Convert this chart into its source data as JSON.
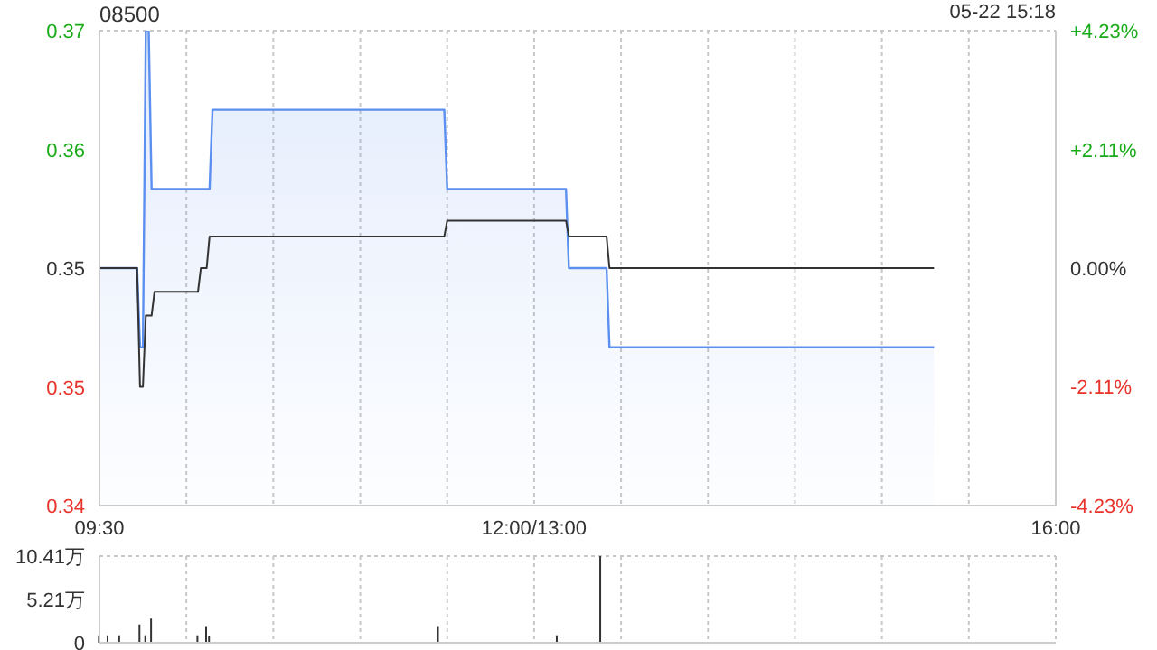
{
  "chart_data": [
    {
      "type": "area",
      "title": "08500",
      "annotations": [
        "05-22 15:18"
      ],
      "categories": [
        "09:30",
        null,
        null,
        null,
        null,
        null,
        null,
        null,
        null,
        null,
        null,
        null,
        null,
        null,
        null,
        null,
        null,
        null,
        null,
        null,
        null,
        null,
        null,
        null,
        null,
        null,
        null,
        null,
        null,
        null,
        null,
        null,
        null,
        null,
        null,
        null,
        null,
        null,
        null,
        null,
        null,
        null,
        null,
        null,
        null,
        null,
        null,
        null,
        null,
        null,
        null,
        null,
        null,
        null,
        null,
        null,
        null,
        null,
        null,
        null,
        null,
        null,
        null,
        null,
        null,
        null,
        null,
        null,
        null,
        null,
        null,
        null,
        null,
        null,
        null,
        null,
        null,
        null,
        null,
        null,
        null,
        null,
        null,
        null,
        null,
        null,
        null,
        null,
        null,
        null,
        null,
        null,
        null,
        null,
        null,
        null,
        null,
        null,
        null,
        null,
        null,
        null,
        null,
        null,
        null,
        null,
        null,
        null,
        null,
        null,
        null,
        null,
        null,
        null,
        null,
        null,
        null,
        null,
        null,
        null,
        null,
        null,
        null,
        null,
        null,
        null,
        null,
        null,
        null,
        null,
        null,
        null,
        null,
        null,
        null,
        null,
        null,
        null,
        null,
        null,
        null,
        null,
        null,
        null,
        null,
        null,
        null,
        null,
        null,
        null,
        "12:00/13:00",
        null,
        null,
        null,
        null,
        null,
        null,
        null,
        null,
        null,
        null,
        null,
        null,
        null,
        null,
        null,
        null,
        null,
        null,
        null,
        null,
        null,
        null,
        null,
        null,
        null,
        null,
        null,
        null,
        null,
        null,
        null,
        null,
        null,
        null,
        null,
        null,
        null,
        null,
        null,
        null,
        null,
        null,
        null,
        null,
        null,
        null,
        null,
        null,
        null,
        null,
        null,
        null,
        null,
        null,
        null,
        null,
        null,
        null,
        null,
        null,
        null,
        null,
        null,
        null,
        null,
        null,
        null,
        null,
        null,
        null,
        null,
        null,
        null,
        null,
        null,
        null,
        null,
        null,
        null,
        null,
        null,
        null,
        null,
        null,
        null,
        null,
        null,
        null,
        null,
        null,
        null,
        null,
        null,
        null,
        null,
        null,
        null,
        null,
        null,
        null,
        null,
        null,
        null,
        null,
        null,
        null,
        null,
        null,
        null,
        null,
        null,
        null,
        null,
        null,
        null,
        null,
        null,
        null,
        null,
        null,
        null,
        null,
        null,
        null,
        null,
        null,
        null,
        null,
        null,
        null,
        null,
        null,
        null,
        null,
        null,
        null,
        null,
        null,
        null,
        null,
        null,
        null,
        null,
        null,
        null,
        null,
        null,
        null,
        null,
        null,
        null,
        null,
        null,
        null,
        null,
        null,
        null,
        null,
        null,
        null,
        null,
        null,
        null,
        null,
        null,
        null,
        null,
        null,
        null,
        null,
        null,
        null,
        null,
        null,
        null,
        null,
        null,
        null,
        null,
        "16:00"
      ],
      "ylim": [
        0.34,
        0.37
      ],
      "yticks": [
        {
          "value": 0.34,
          "label": "0.34"
        },
        {
          "value": 0.3475,
          "label": "0.35"
        },
        {
          "value": 0.355,
          "label": "0.35"
        },
        {
          "value": 0.3625,
          "label": "0.36"
        },
        {
          "value": 0.37,
          "label": "0.37"
        }
      ],
      "y2lim": [
        -4.23,
        4.23
      ],
      "y2ticks": [
        {
          "value": -4.23,
          "label": "-4.23%"
        },
        {
          "value": -2.11,
          "label": "-2.11%"
        },
        {
          "value": 0,
          "label": "0.00%"
        },
        {
          "value": 2.11,
          "label": "+2.11%"
        },
        {
          "value": 4.23,
          "label": "+4.23%"
        }
      ],
      "grid": true,
      "marker": "none",
      "series": [
        {
          "color": "#5b8ff0",
          "values": [
            0.355,
            0.355,
            0.355,
            0.355,
            0.355,
            0.355,
            0.355,
            0.355,
            0.355,
            0.355,
            0.355,
            0.355,
            0.355,
            0.355,
            0.35,
            0.35,
            0.37,
            0.37,
            0.36,
            0.36,
            0.36,
            0.36,
            0.36,
            0.36,
            0.36,
            0.36,
            0.36,
            0.36,
            0.36,
            0.36,
            0.36,
            0.36,
            0.36,
            0.36,
            0.36,
            0.36,
            0.36,
            0.36,
            0.36,
            0.365,
            0.365,
            0.365,
            0.365,
            0.365,
            0.365,
            0.365,
            0.365,
            0.365,
            0.365,
            0.365,
            0.365,
            0.365,
            0.365,
            0.365,
            0.365,
            0.365,
            0.365,
            0.365,
            0.365,
            0.365,
            0.365,
            0.365,
            0.365,
            0.365,
            0.365,
            0.365,
            0.365,
            0.365,
            0.365,
            0.365,
            0.365,
            0.365,
            0.365,
            0.365,
            0.365,
            0.365,
            0.365,
            0.365,
            0.365,
            0.365,
            0.365,
            0.365,
            0.365,
            0.365,
            0.365,
            0.365,
            0.365,
            0.365,
            0.365,
            0.365,
            0.365,
            0.365,
            0.365,
            0.365,
            0.365,
            0.365,
            0.365,
            0.365,
            0.365,
            0.365,
            0.365,
            0.365,
            0.365,
            0.365,
            0.365,
            0.365,
            0.365,
            0.365,
            0.365,
            0.365,
            0.365,
            0.365,
            0.365,
            0.365,
            0.365,
            0.365,
            0.365,
            0.365,
            0.365,
            0.365,
            0.36,
            0.36,
            0.36,
            0.36,
            0.36,
            0.36,
            0.36,
            0.36,
            0.36,
            0.36,
            0.36,
            0.36,
            0.36,
            0.36,
            0.36,
            0.36,
            0.36,
            0.36,
            0.36,
            0.36,
            0.36,
            0.36,
            0.36,
            0.36,
            0.36,
            0.36,
            0.36,
            0.36,
            0.36,
            0.36,
            0.36,
            0.36,
            0.36,
            0.36,
            0.36,
            0.36,
            0.36,
            0.36,
            0.36,
            0.36,
            0.36,
            0.36,
            0.355,
            0.355,
            0.355,
            0.355,
            0.355,
            0.355,
            0.355,
            0.355,
            0.355,
            0.355,
            0.355,
            0.355,
            0.355,
            0.355,
            0.35,
            0.35,
            0.35,
            0.35,
            0.35,
            0.35,
            0.35,
            0.35,
            0.35,
            0.35,
            0.35,
            0.35,
            0.35,
            0.35,
            0.35,
            0.35,
            0.35,
            0.35,
            0.35,
            0.35,
            0.35,
            0.35,
            0.35,
            0.35,
            0.35,
            0.35,
            0.35,
            0.35,
            0.35,
            0.35,
            0.35,
            0.35,
            0.35,
            0.35,
            0.35,
            0.35,
            0.35,
            0.35,
            0.35,
            0.35,
            0.35,
            0.35,
            0.35,
            0.35,
            0.35,
            0.35,
            0.35,
            0.35,
            0.35,
            0.35,
            0.35,
            0.35,
            0.35,
            0.35,
            0.35,
            0.35,
            0.35,
            0.35,
            0.35,
            0.35,
            0.35,
            0.35,
            0.35,
            0.35,
            0.35,
            0.35,
            0.35,
            0.35,
            0.35,
            0.35,
            0.35,
            0.35,
            0.35,
            0.35,
            0.35,
            0.35,
            0.35,
            0.35,
            0.35,
            0.35,
            0.35,
            0.35,
            0.35,
            0.35,
            0.35,
            0.35,
            0.35,
            0.35,
            0.35,
            0.35,
            0.35,
            0.35,
            0.35,
            0.35,
            0.35,
            0.35,
            0.35,
            0.35,
            0.35,
            0.35,
            0.35,
            0.35,
            0.35,
            0.35,
            0.35,
            0.35,
            0.35,
            0.35,
            0.35,
            0.35,
            0.35,
            0.35,
            0.35,
            null,
            null,
            null,
            null,
            null,
            null,
            null,
            null,
            null,
            null,
            null,
            null,
            null,
            null,
            null,
            null,
            null,
            null,
            null,
            null,
            null,
            null,
            null,
            null,
            null,
            null,
            null,
            null,
            null,
            null,
            null,
            null,
            null,
            null,
            null,
            null,
            null,
            null,
            null,
            null,
            null,
            null
          ]
        },
        {
          "type": "line",
          "color": "#333333",
          "values": [
            0.355,
            0.355,
            0.355,
            0.355,
            0.355,
            0.355,
            0.355,
            0.355,
            0.355,
            0.355,
            0.355,
            0.355,
            0.355,
            0.355,
            0.3475,
            0.3475,
            0.352,
            0.352,
            0.352,
            0.3535,
            0.3535,
            0.3535,
            0.3535,
            0.3535,
            0.3535,
            0.3535,
            0.3535,
            0.3535,
            0.3535,
            0.3535,
            0.3535,
            0.3535,
            0.3535,
            0.3535,
            0.3535,
            0.355,
            0.355,
            0.355,
            0.357,
            0.357,
            0.357,
            0.357,
            0.357,
            0.357,
            0.357,
            0.357,
            0.357,
            0.357,
            0.357,
            0.357,
            0.357,
            0.357,
            0.357,
            0.357,
            0.357,
            0.357,
            0.357,
            0.357,
            0.357,
            0.357,
            0.357,
            0.357,
            0.357,
            0.357,
            0.357,
            0.357,
            0.357,
            0.357,
            0.357,
            0.357,
            0.357,
            0.357,
            0.357,
            0.357,
            0.357,
            0.357,
            0.357,
            0.357,
            0.357,
            0.357,
            0.357,
            0.357,
            0.357,
            0.357,
            0.357,
            0.357,
            0.357,
            0.357,
            0.357,
            0.357,
            0.357,
            0.357,
            0.357,
            0.357,
            0.357,
            0.357,
            0.357,
            0.357,
            0.357,
            0.357,
            0.357,
            0.357,
            0.357,
            0.357,
            0.357,
            0.357,
            0.357,
            0.357,
            0.357,
            0.357,
            0.357,
            0.357,
            0.357,
            0.357,
            0.357,
            0.357,
            0.357,
            0.357,
            0.357,
            0.357,
            0.358,
            0.358,
            0.358,
            0.358,
            0.358,
            0.358,
            0.358,
            0.358,
            0.358,
            0.358,
            0.358,
            0.358,
            0.358,
            0.358,
            0.358,
            0.358,
            0.358,
            0.358,
            0.358,
            0.358,
            0.358,
            0.358,
            0.358,
            0.358,
            0.358,
            0.358,
            0.358,
            0.358,
            0.358,
            0.358,
            0.358,
            0.358,
            0.358,
            0.358,
            0.358,
            0.358,
            0.358,
            0.358,
            0.358,
            0.358,
            0.358,
            0.358,
            0.357,
            0.357,
            0.357,
            0.357,
            0.357,
            0.357,
            0.357,
            0.357,
            0.357,
            0.357,
            0.357,
            0.357,
            0.357,
            0.357,
            0.355,
            0.355,
            0.355,
            0.355,
            0.355,
            0.355,
            0.355,
            0.355,
            0.355,
            0.355,
            0.355,
            0.355,
            0.355,
            0.355,
            0.355,
            0.355,
            0.355,
            0.355,
            0.355,
            0.355,
            0.355,
            0.355,
            0.355,
            0.355,
            0.355,
            0.355,
            0.355,
            0.355,
            0.355,
            0.355,
            0.355,
            0.355,
            0.355,
            0.355,
            0.355,
            0.355,
            0.355,
            0.355,
            0.355,
            0.355,
            0.355,
            0.355,
            0.355,
            0.355,
            0.355,
            0.355,
            0.355,
            0.355,
            0.355,
            0.355,
            0.355,
            0.355,
            0.355,
            0.355,
            0.355,
            0.355,
            0.355,
            0.355,
            0.355,
            0.355,
            0.355,
            0.355,
            0.355,
            0.355,
            0.355,
            0.355,
            0.355,
            0.355,
            0.355,
            0.355,
            0.355,
            0.355,
            0.355,
            0.355,
            0.355,
            0.355,
            0.355,
            0.355,
            0.355,
            0.355,
            0.355,
            0.355,
            0.355,
            0.355,
            0.355,
            0.355,
            0.355,
            0.355,
            0.355,
            0.355,
            0.355,
            0.355,
            0.355,
            0.355,
            0.355,
            0.355,
            0.355,
            0.355,
            0.355,
            0.355,
            0.355,
            0.355,
            0.355,
            0.355,
            0.355,
            0.355,
            0.355,
            0.355,
            0.355,
            0.355,
            0.355,
            0.355,
            0.355,
            null,
            null,
            null,
            null,
            null,
            null,
            null,
            null,
            null,
            null,
            null,
            null,
            null,
            null,
            null,
            null,
            null,
            null,
            null,
            null,
            null,
            null,
            null,
            null,
            null,
            null,
            null,
            null,
            null,
            null,
            null,
            null,
            null,
            null,
            null,
            null,
            null,
            null,
            null,
            null,
            null,
            null
          ]
        }
      ]
    },
    {
      "type": "bar",
      "tick_labels": "y",
      "categories": [
        null,
        null,
        null,
        null,
        null,
        null,
        null,
        null,
        null,
        null,
        null,
        null,
        null,
        null,
        null,
        null,
        null,
        null,
        null,
        null,
        null,
        null,
        null,
        null,
        null,
        null,
        null,
        null,
        null,
        null,
        null,
        null,
        null,
        null,
        null,
        null,
        null,
        null,
        null,
        null,
        null,
        null,
        null,
        null,
        null,
        null,
        null,
        null,
        null,
        null,
        null,
        null,
        null,
        null,
        null,
        null,
        null,
        null,
        null,
        null,
        null,
        null,
        null,
        null,
        null,
        null,
        null,
        null,
        null,
        null,
        null,
        null,
        null,
        null,
        null,
        null,
        null,
        null,
        null,
        null,
        null,
        null,
        null,
        null,
        null,
        null,
        null,
        null,
        null,
        null,
        null,
        null,
        null,
        null,
        null,
        null,
        null,
        null,
        null,
        null,
        null,
        null,
        null,
        null,
        null,
        null,
        null,
        null,
        null,
        null,
        null,
        null,
        null,
        null,
        null,
        null,
        null,
        null,
        null,
        null,
        null,
        null,
        null,
        null,
        null,
        null,
        null,
        null,
        null,
        null,
        null,
        null,
        null,
        null,
        null,
        null,
        null,
        null,
        null,
        null,
        null,
        null,
        null,
        null,
        null,
        null,
        null,
        null,
        null,
        null,
        null,
        null,
        null,
        null,
        null,
        null,
        null,
        null,
        null,
        null,
        null,
        null,
        null,
        null,
        null,
        null,
        null,
        null,
        null,
        null,
        null,
        null,
        null,
        null,
        null,
        null,
        null,
        null,
        null,
        null,
        null,
        null,
        null,
        null,
        null,
        null,
        null,
        null,
        null,
        null,
        null,
        null,
        null,
        null,
        null,
        null,
        null,
        null,
        null,
        null,
        null,
        null,
        null,
        null,
        null,
        null,
        null,
        null,
        null,
        null,
        null,
        null,
        null,
        null,
        null,
        null,
        null,
        null,
        null,
        null,
        null,
        null,
        null,
        null,
        null,
        null,
        null,
        null,
        null,
        null,
        null,
        null,
        null,
        null,
        null,
        null,
        null,
        null,
        null,
        null,
        null,
        null,
        null,
        null,
        null,
        null,
        null,
        null,
        null,
        null,
        null,
        null,
        null,
        null,
        null,
        null,
        null,
        null,
        null,
        null,
        null,
        null,
        null,
        null,
        null,
        null,
        null,
        null,
        null,
        null,
        null,
        null,
        null,
        null,
        null,
        null,
        null,
        null,
        null,
        null,
        null,
        null,
        null,
        null,
        null,
        null,
        null,
        null,
        null,
        null,
        null,
        null,
        null,
        null,
        null,
        null,
        null,
        null,
        null,
        null,
        null,
        null,
        null,
        null,
        null,
        null,
        null,
        null,
        null,
        null,
        null,
        null,
        null,
        null,
        null,
        null,
        null,
        null,
        null,
        null,
        null,
        null,
        null,
        null,
        null,
        null,
        null,
        null,
        null,
        null,
        null
      ],
      "ylim": [
        0,
        10.41
      ],
      "yticks": [
        0,
        {
          "value": 5.21,
          "label": "5.21万"
        },
        {
          "value": 10.41,
          "label": "10.41万"
        }
      ],
      "grid": true,
      "color": "#333333",
      "values": [
        0.9,
        null,
        null,
        0.9,
        null,
        null,
        null,
        0.9,
        null,
        null,
        null,
        null,
        null,
        null,
        2.2,
        null,
        0.9,
        null,
        2.9,
        null,
        null,
        null,
        null,
        null,
        null,
        null,
        null,
        null,
        null,
        null,
        null,
        null,
        null,
        null,
        0.9,
        null,
        null,
        2,
        0.8,
        null,
        null,
        null,
        null,
        null,
        null,
        null,
        null,
        null,
        null,
        null,
        null,
        null,
        null,
        null,
        null,
        null,
        null,
        null,
        null,
        null,
        null,
        null,
        null,
        null,
        null,
        null,
        null,
        null,
        null,
        null,
        null,
        null,
        null,
        null,
        null,
        null,
        null,
        null,
        null,
        null,
        null,
        null,
        null,
        null,
        null,
        null,
        null,
        null,
        null,
        null,
        null,
        null,
        null,
        null,
        null,
        null,
        null,
        null,
        null,
        null,
        null,
        null,
        null,
        null,
        null,
        null,
        null,
        null,
        null,
        null,
        null,
        null,
        null,
        null,
        null,
        null,
        null,
        2,
        null,
        null,
        null,
        null,
        null,
        null,
        null,
        null,
        null,
        null,
        null,
        null,
        null,
        null,
        null,
        null,
        null,
        null,
        null,
        null,
        null,
        null,
        null,
        null,
        null,
        null,
        null,
        null,
        null,
        null,
        null,
        null,
        null,
        null,
        null,
        null,
        null,
        null,
        null,
        null,
        0.9,
        null,
        null,
        null,
        null,
        null,
        null,
        null,
        null,
        null,
        null,
        null,
        null,
        null,
        null,
        10.4,
        null,
        null,
        null,
        null,
        null,
        null,
        null,
        null,
        null,
        null,
        null,
        null,
        null,
        null,
        null,
        null,
        null,
        null,
        null,
        null,
        null,
        null,
        null,
        null,
        null,
        null,
        null,
        null,
        null,
        null,
        null,
        null,
        null,
        null,
        null,
        null,
        null,
        null,
        null,
        null,
        null,
        null,
        null,
        null,
        null,
        null,
        null,
        null,
        null,
        null,
        null,
        null,
        null,
        null,
        null,
        null,
        null,
        null,
        null,
        null,
        null,
        null,
        null,
        null,
        null,
        null,
        null,
        null,
        null,
        null,
        null,
        null,
        null,
        null,
        null,
        null,
        null,
        null,
        null,
        null,
        null,
        null,
        null,
        null,
        null,
        null,
        null,
        null,
        null,
        null,
        null,
        null,
        null,
        null,
        null,
        null,
        null,
        null,
        null,
        null,
        null,
        null,
        null,
        null,
        null,
        null,
        null,
        null,
        null,
        null,
        null,
        null,
        null,
        null,
        null,
        null,
        null,
        null,
        null,
        null,
        null,
        null,
        null,
        null,
        null,
        null,
        null,
        null,
        null,
        null,
        null,
        null,
        null,
        null,
        null,
        null,
        null,
        null,
        null,
        null,
        null,
        null,
        null,
        null,
        null,
        null,
        null,
        null,
        null,
        null,
        null,
        null,
        null,
        null,
        null,
        null,
        null
      ]
    }
  ]
}
